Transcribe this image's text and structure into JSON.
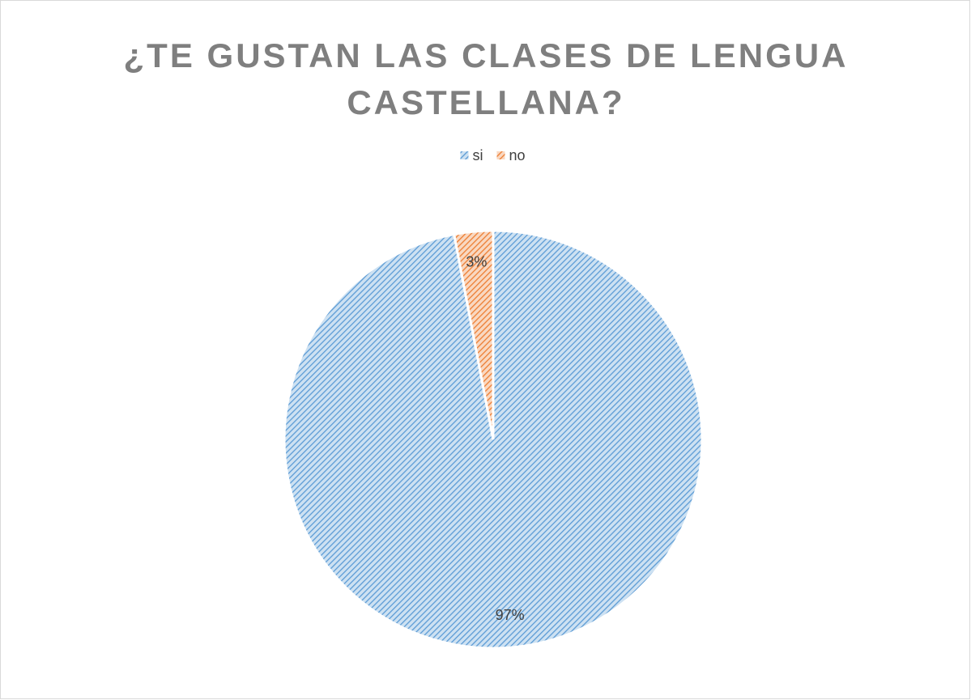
{
  "chart_data": {
    "type": "pie",
    "title": "¿TE GUSTAN LAS CLASES DE LENGUA CASTELLANA?",
    "categories": [
      "si",
      "no"
    ],
    "values": [
      97,
      3
    ],
    "value_labels": [
      "97%",
      "3%"
    ],
    "colors": [
      "#5b9bd5",
      "#ed7d31"
    ],
    "legend": "top"
  }
}
